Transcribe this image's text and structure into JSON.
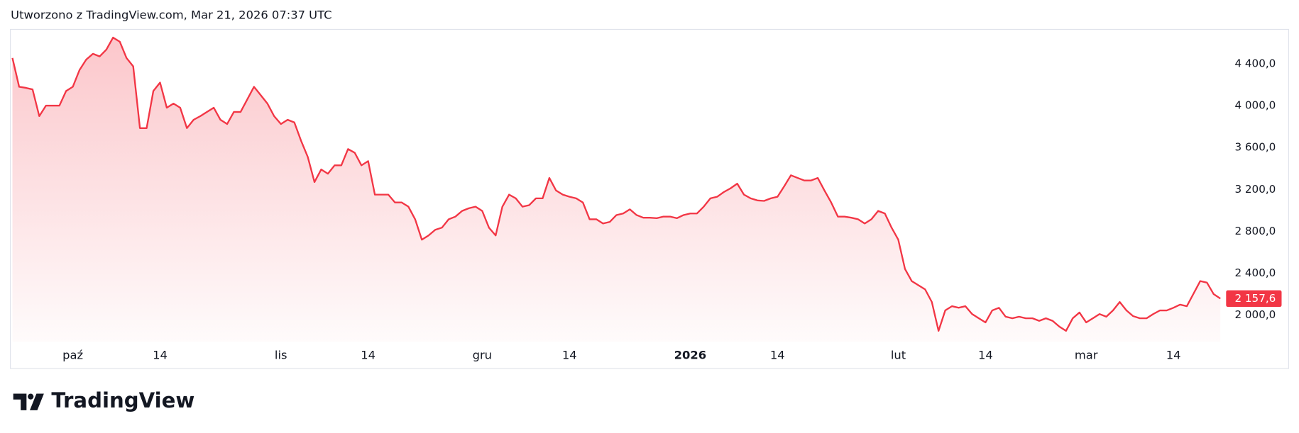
{
  "header": "Utworzono z TradingView.com, Mar 21, 2026 07:37 UTC",
  "brand": "TradingView",
  "chart_data": {
    "type": "area",
    "color": "#f23645",
    "xlim": [
      -0.25,
      180.6
    ],
    "ylim": [
      1747,
      4732
    ],
    "yticks": [
      {
        "value": 2000,
        "label": "2 000,0"
      },
      {
        "value": 2400,
        "label": "2 400,0"
      },
      {
        "value": 2800,
        "label": "2 800,0"
      },
      {
        "value": 3200,
        "label": "3 200,0"
      },
      {
        "value": 3600,
        "label": "3 600,0"
      },
      {
        "value": 4000,
        "label": "4 000,0"
      },
      {
        "value": 4400,
        "label": "4 400,0"
      }
    ],
    "xticks": [
      {
        "value": 9,
        "label": "paź"
      },
      {
        "value": 22,
        "label": "14"
      },
      {
        "value": 40,
        "label": "lis"
      },
      {
        "value": 53,
        "label": "14"
      },
      {
        "value": 70,
        "label": "gru"
      },
      {
        "value": 83,
        "label": "14"
      },
      {
        "value": 101,
        "label": "2026",
        "bold": true
      },
      {
        "value": 114,
        "label": "14"
      },
      {
        "value": 132,
        "label": "lut"
      },
      {
        "value": 145,
        "label": "14"
      },
      {
        "value": 160,
        "label": "mar"
      },
      {
        "value": 173,
        "label": "14"
      }
    ],
    "last_price": {
      "value": 2157.6,
      "label": "2 157,6"
    },
    "values": [
      4455,
      4180,
      4170,
      4155,
      3900,
      4000,
      4000,
      4000,
      4140,
      4180,
      4340,
      4440,
      4495,
      4470,
      4535,
      4650,
      4610,
      4455,
      4375,
      3785,
      3785,
      4140,
      4220,
      3980,
      4020,
      3980,
      3785,
      3865,
      3900,
      3940,
      3980,
      3865,
      3825,
      3940,
      3940,
      4060,
      4180,
      4100,
      4020,
      3900,
      3825,
      3865,
      3840,
      3665,
      3510,
      3270,
      3390,
      3350,
      3430,
      3430,
      3585,
      3550,
      3430,
      3470,
      3150,
      3150,
      3150,
      3075,
      3075,
      3035,
      2915,
      2720,
      2760,
      2815,
      2835,
      2915,
      2940,
      2995,
      3020,
      3035,
      2995,
      2835,
      2760,
      3035,
      3150,
      3115,
      3035,
      3050,
      3115,
      3115,
      3310,
      3190,
      3150,
      3130,
      3115,
      3075,
      2915,
      2915,
      2875,
      2890,
      2955,
      2970,
      3010,
      2955,
      2930,
      2930,
      2925,
      2940,
      2940,
      2925,
      2955,
      2970,
      2970,
      3035,
      3115,
      3130,
      3175,
      3210,
      3255,
      3150,
      3115,
      3095,
      3090,
      3115,
      3130,
      3230,
      3335,
      3310,
      3285,
      3285,
      3310,
      3190,
      3075,
      2940,
      2940,
      2930,
      2915,
      2875,
      2915,
      2995,
      2970,
      2835,
      2720,
      2440,
      2325,
      2285,
      2245,
      2125,
      1850,
      2045,
      2085,
      2070,
      2085,
      2010,
      1970,
      1930,
      2045,
      2070,
      1985,
      1970,
      1985,
      1970,
      1970,
      1945,
      1970,
      1945,
      1890,
      1850,
      1970,
      2025,
      1930,
      1970,
      2010,
      1985,
      2045,
      2125,
      2045,
      1990,
      1970,
      1970,
      2010,
      2045,
      2045,
      2070,
      2100,
      2085,
      2205,
      2325,
      2310,
      2200,
      2157.6
    ]
  }
}
